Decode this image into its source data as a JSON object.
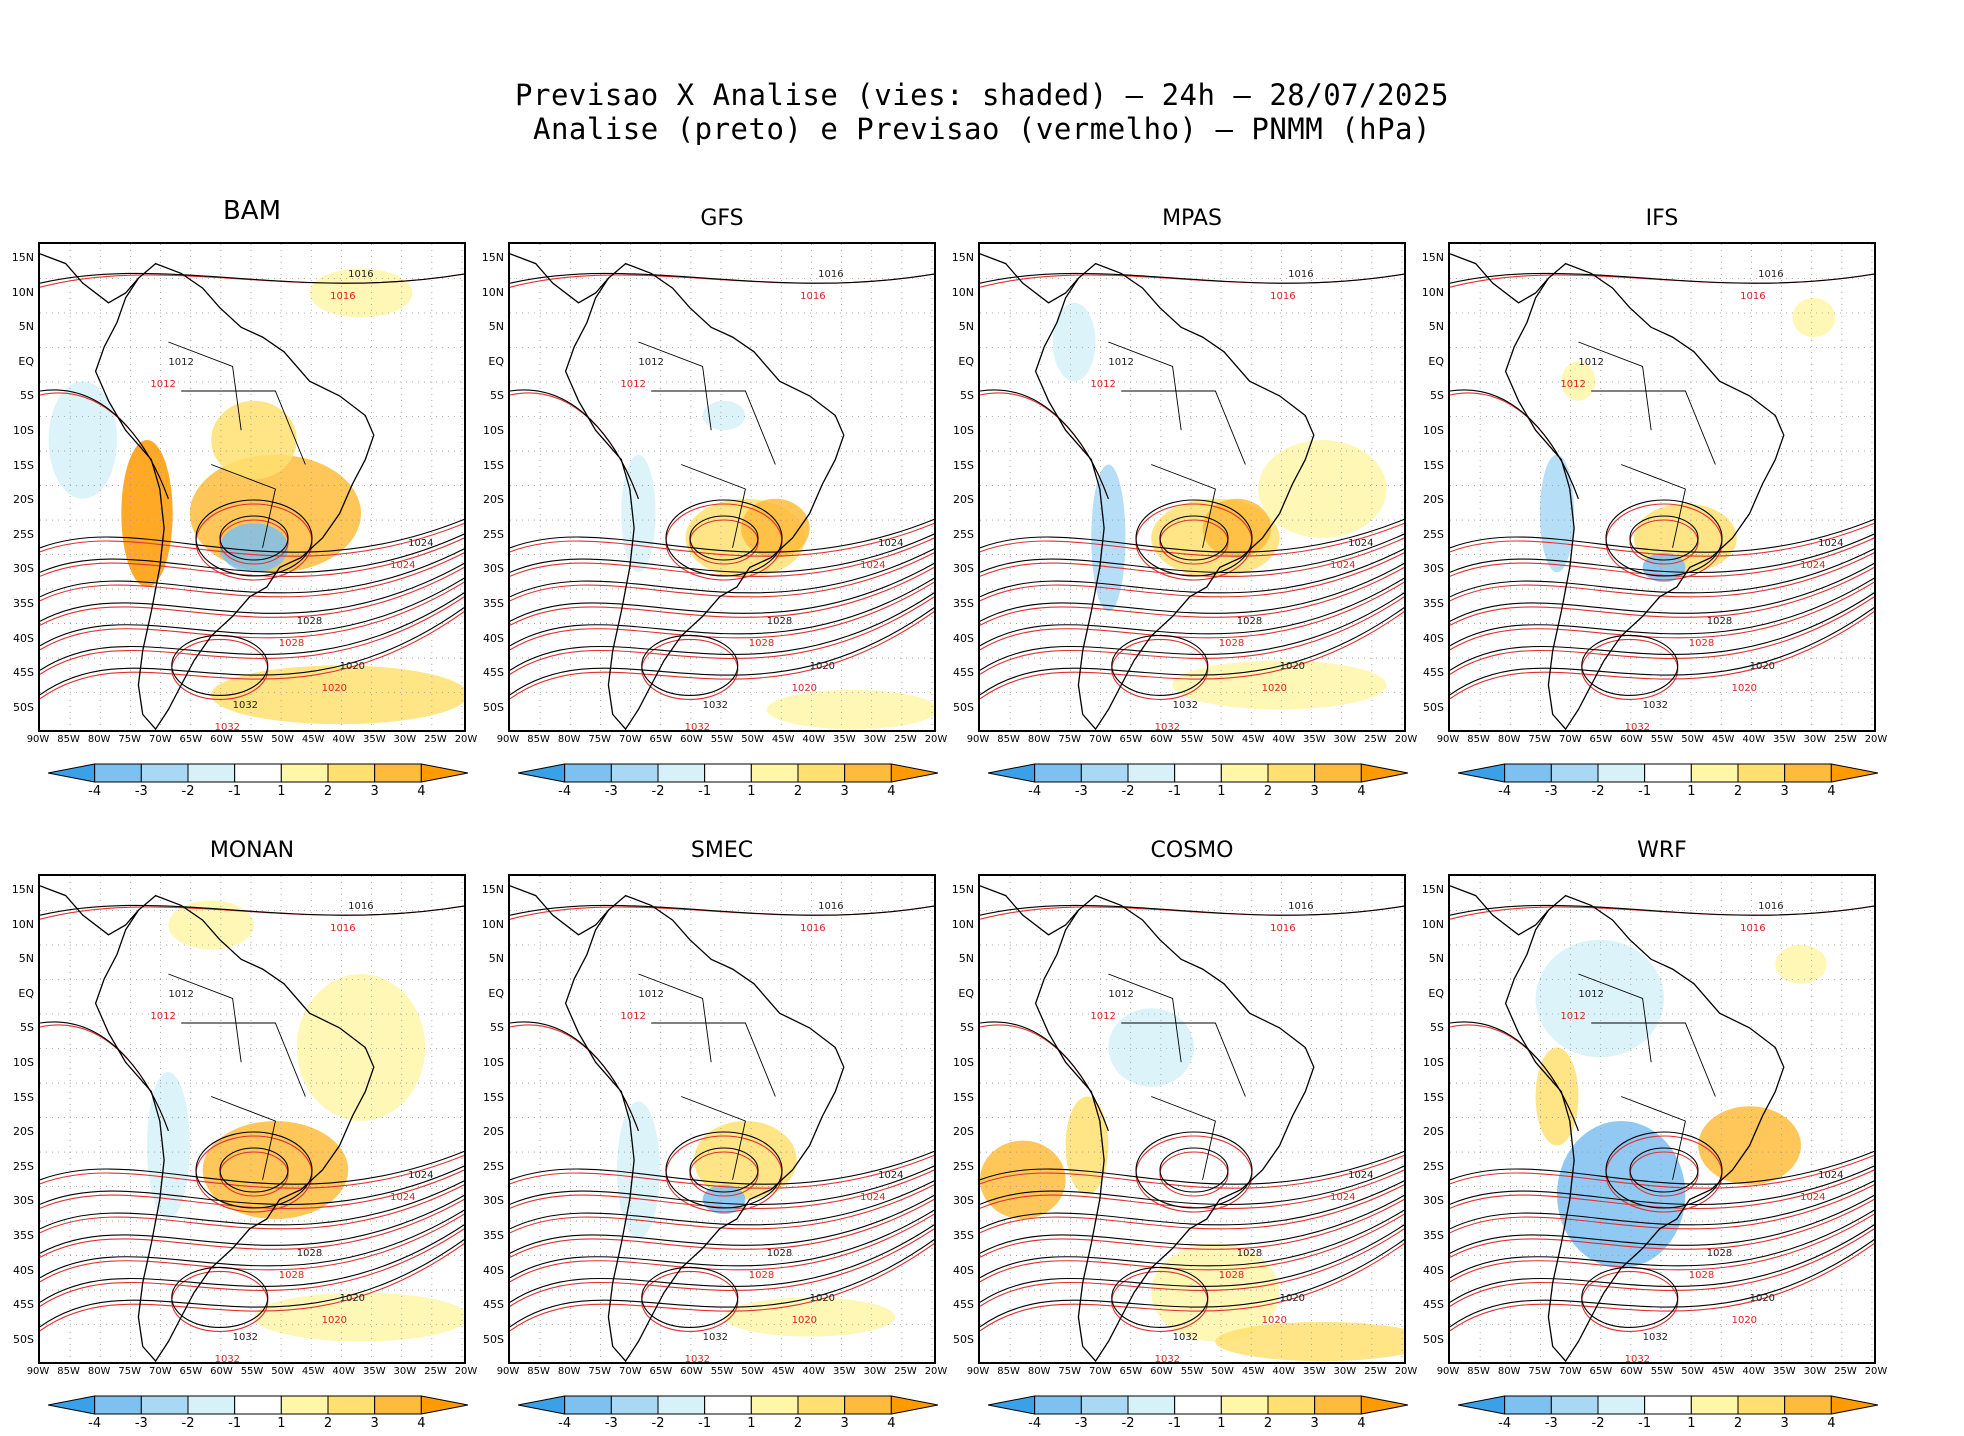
{
  "header": {
    "line1": "Previsao X Analise (vies: shaded) — 24h — 28/07/2025",
    "line2": "Analise (preto) e Previsao (vermelho) — PNMM (hPa)"
  },
  "panels": [
    {
      "model": "BAM"
    },
    {
      "model": "GFS"
    },
    {
      "model": "MPAS"
    },
    {
      "model": "IFS"
    },
    {
      "model": "MONAN"
    },
    {
      "model": "SMEC"
    },
    {
      "model": "COSMO"
    },
    {
      "model": "WRF"
    }
  ],
  "axes": {
    "lat_labels": [
      "15N",
      "10N",
      "5N",
      "EQ",
      "5S",
      "10S",
      "15S",
      "20S",
      "25S",
      "30S",
      "35S",
      "40S",
      "45S",
      "50S"
    ],
    "lon_labels": [
      "90W",
      "85W",
      "80W",
      "75W",
      "70W",
      "65W",
      "60W",
      "55W",
      "50W",
      "45W",
      "40W",
      "35W",
      "30W",
      "25W",
      "20W"
    ]
  },
  "colorbar": {
    "labels": [
      "-4",
      "-3",
      "-2",
      "-1",
      "1",
      "2",
      "3",
      "4"
    ],
    "colors": [
      "#3aa0e8",
      "#7ec0f0",
      "#a9d8f4",
      "#d6f2f8",
      "#ffffff",
      "#fff6a8",
      "#ffe070",
      "#ffbc3c",
      "#ff9a00"
    ]
  },
  "contour_labels": {
    "analysis": [
      "1016",
      "1012",
      "1020",
      "1024",
      "1028",
      "1032"
    ],
    "forecast": [
      "1016",
      "1012",
      "1020",
      "1024",
      "1028",
      "1032"
    ]
  },
  "colors": {
    "analysis": "#000000",
    "forecast": "#e03030",
    "land_outline": "#000000"
  }
}
